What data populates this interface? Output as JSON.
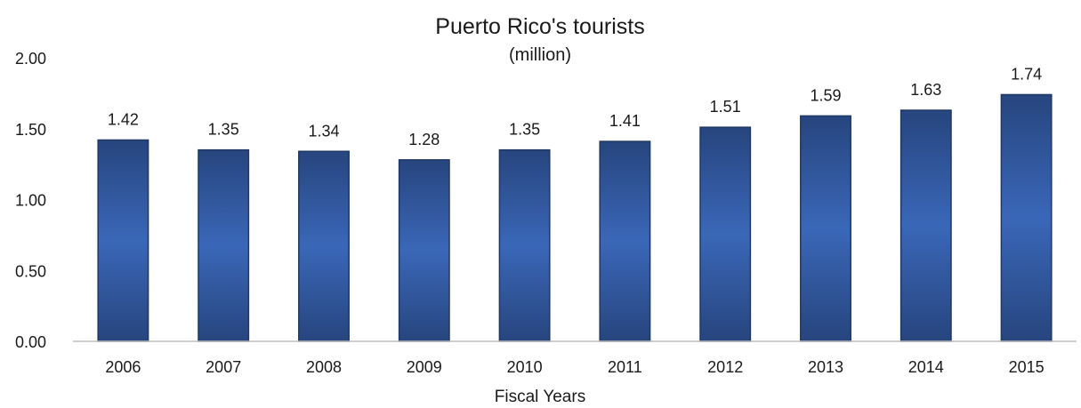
{
  "chart_data": {
    "type": "bar",
    "title": "Puerto Rico's tourists",
    "subtitle": "(million)",
    "xlabel": "Fiscal Years",
    "ylabel": "",
    "categories": [
      "2006",
      "2007",
      "2008",
      "2009",
      "2010",
      "2011",
      "2012",
      "2013",
      "2014",
      "2015"
    ],
    "values": [
      1.42,
      1.35,
      1.34,
      1.28,
      1.35,
      1.41,
      1.51,
      1.59,
      1.63,
      1.74
    ],
    "data_labels": [
      "1.42",
      "1.35",
      "1.34",
      "1.28",
      "1.35",
      "1.41",
      "1.51",
      "1.59",
      "1.63",
      "1.74"
    ],
    "ylim": [
      0,
      2
    ],
    "yticks": [
      "0.00",
      "0.50",
      "1.00",
      "1.50",
      "2.00"
    ],
    "ytick_values": [
      0,
      0.5,
      1,
      1.5,
      2
    ],
    "grid": false,
    "legend": "none",
    "colors": {
      "bar_edge": "#1f3864",
      "bar_dark": "#27457e",
      "bar_light": "#3a67b8",
      "axis": "#bfbfbf"
    }
  }
}
